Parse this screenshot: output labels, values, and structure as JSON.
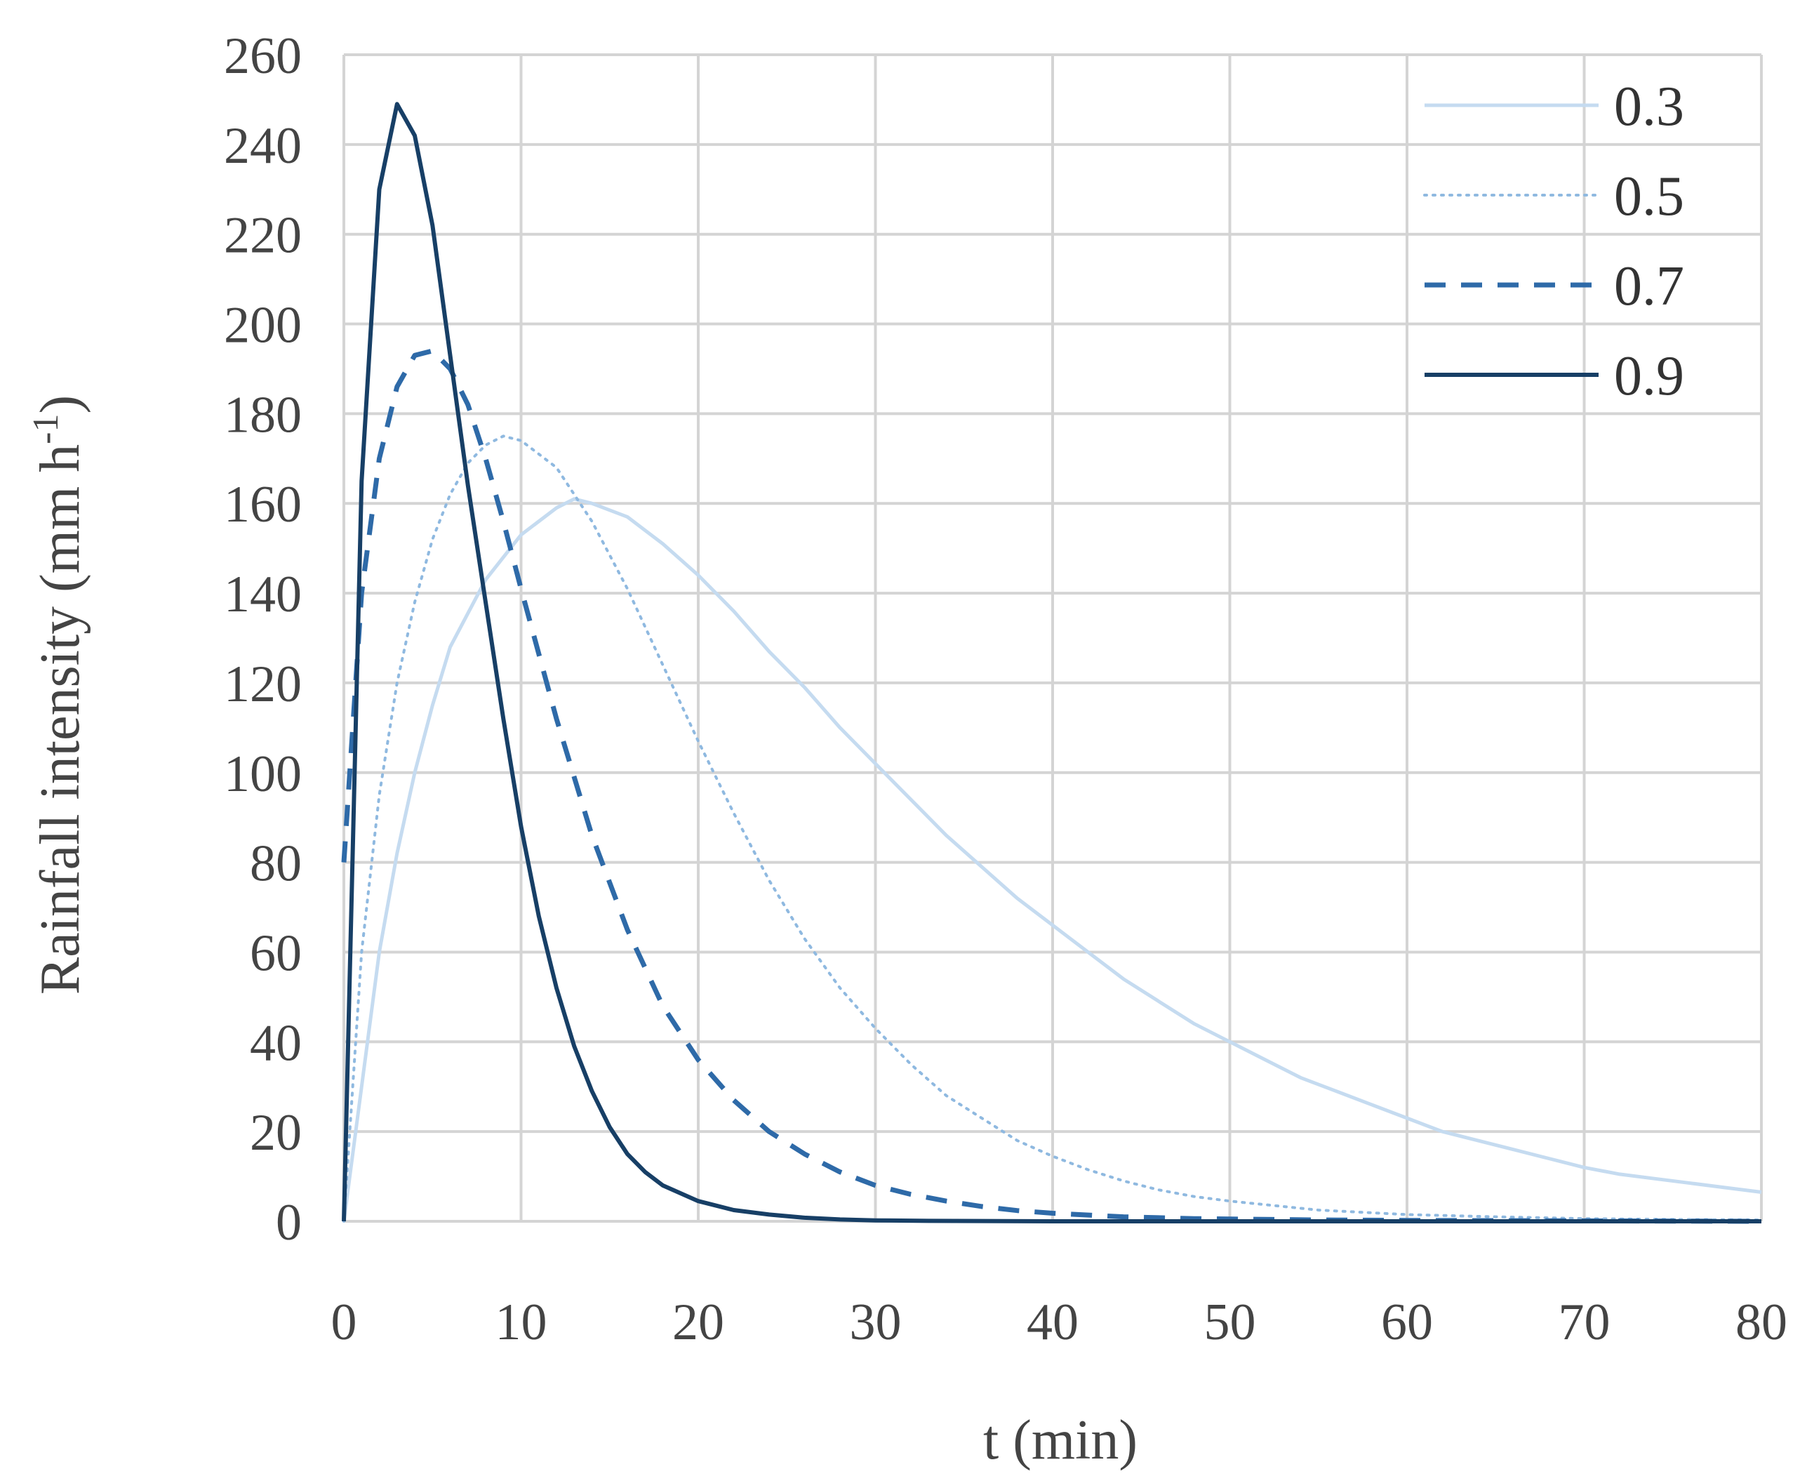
{
  "chart_data": {
    "type": "line",
    "title": "",
    "xlabel": "t (min)",
    "ylabel": "Rainfall intensity (mm h",
    "ylabel_sup": "-1",
    "ylabel_close": ")",
    "xlim": [
      0,
      80
    ],
    "ylim": [
      0,
      260
    ],
    "x_ticks": [
      0,
      10,
      20,
      30,
      40,
      50,
      60,
      70,
      80
    ],
    "y_ticks": [
      0,
      20,
      40,
      60,
      80,
      100,
      120,
      140,
      160,
      180,
      200,
      220,
      240,
      260
    ],
    "grid": true,
    "legend_position": "top-right",
    "series": [
      {
        "name": "0.3",
        "color": "#c5dbf0",
        "style": "solid",
        "points": [
          [
            0,
            0
          ],
          [
            1,
            30
          ],
          [
            2,
            60
          ],
          [
            3,
            82
          ],
          [
            4,
            100
          ],
          [
            5,
            115
          ],
          [
            6,
            128
          ],
          [
            8,
            143
          ],
          [
            10,
            153
          ],
          [
            12,
            159
          ],
          [
            13,
            161
          ],
          [
            14,
            160
          ],
          [
            16,
            157
          ],
          [
            18,
            151
          ],
          [
            20,
            144
          ],
          [
            22,
            136
          ],
          [
            24,
            127
          ],
          [
            26,
            119
          ],
          [
            28,
            110
          ],
          [
            30,
            102
          ],
          [
            32,
            94
          ],
          [
            34,
            86
          ],
          [
            36,
            79
          ],
          [
            38,
            72
          ],
          [
            40,
            66
          ],
          [
            42,
            60
          ],
          [
            44,
            54
          ],
          [
            46,
            49
          ],
          [
            48,
            44
          ],
          [
            50,
            40
          ],
          [
            52,
            36
          ],
          [
            54,
            32
          ],
          [
            56,
            29
          ],
          [
            58,
            26
          ],
          [
            60,
            23
          ],
          [
            62,
            20
          ],
          [
            64,
            18
          ],
          [
            66,
            16
          ],
          [
            68,
            14
          ],
          [
            70,
            12
          ],
          [
            72,
            10.5
          ],
          [
            74,
            9.5
          ],
          [
            76,
            8.5
          ],
          [
            78,
            7.5
          ],
          [
            80,
            6.5
          ]
        ]
      },
      {
        "name": "0.5",
        "color": "#8fb9e0",
        "style": "dotted",
        "points": [
          [
            0,
            0
          ],
          [
            1,
            60
          ],
          [
            2,
            95
          ],
          [
            3,
            120
          ],
          [
            4,
            138
          ],
          [
            5,
            152
          ],
          [
            6,
            162
          ],
          [
            7,
            169
          ],
          [
            8,
            173
          ],
          [
            9,
            175
          ],
          [
            10,
            174
          ],
          [
            12,
            168
          ],
          [
            14,
            156
          ],
          [
            16,
            141
          ],
          [
            18,
            124
          ],
          [
            20,
            107
          ],
          [
            22,
            91
          ],
          [
            24,
            76
          ],
          [
            26,
            63
          ],
          [
            28,
            52
          ],
          [
            30,
            43
          ],
          [
            32,
            35
          ],
          [
            34,
            28
          ],
          [
            36,
            23
          ],
          [
            38,
            18
          ],
          [
            40,
            14.5
          ],
          [
            42,
            11.5
          ],
          [
            44,
            9
          ],
          [
            46,
            7
          ],
          [
            48,
            5.5
          ],
          [
            50,
            4.5
          ],
          [
            55,
            2.5
          ],
          [
            60,
            1.5
          ],
          [
            65,
            1
          ],
          [
            70,
            0.6
          ],
          [
            75,
            0.4
          ],
          [
            80,
            0.3
          ]
        ]
      },
      {
        "name": "0.7",
        "color": "#2e6aa8",
        "style": "dashed",
        "points": [
          [
            0,
            80
          ],
          [
            1,
            140
          ],
          [
            2,
            170
          ],
          [
            3,
            186
          ],
          [
            4,
            193
          ],
          [
            5,
            194
          ],
          [
            6,
            190
          ],
          [
            7,
            182
          ],
          [
            8,
            170
          ],
          [
            9,
            156
          ],
          [
            10,
            141
          ],
          [
            12,
            112
          ],
          [
            14,
            86
          ],
          [
            16,
            65
          ],
          [
            18,
            48
          ],
          [
            20,
            36
          ],
          [
            22,
            27
          ],
          [
            24,
            20
          ],
          [
            26,
            15
          ],
          [
            28,
            11
          ],
          [
            30,
            8
          ],
          [
            32,
            6
          ],
          [
            34,
            4.5
          ],
          [
            36,
            3.3
          ],
          [
            38,
            2.4
          ],
          [
            40,
            1.8
          ],
          [
            44,
            1
          ],
          [
            48,
            0.6
          ],
          [
            55,
            0.3
          ],
          [
            60,
            0.2
          ],
          [
            70,
            0.1
          ],
          [
            80,
            0
          ]
        ]
      },
      {
        "name": "0.9",
        "color": "#173f66",
        "style": "solid",
        "points": [
          [
            0,
            0
          ],
          [
            1,
            165
          ],
          [
            2,
            230
          ],
          [
            3,
            249
          ],
          [
            4,
            242
          ],
          [
            5,
            222
          ],
          [
            6,
            193
          ],
          [
            7,
            164
          ],
          [
            8,
            138
          ],
          [
            9,
            112
          ],
          [
            10,
            88
          ],
          [
            11,
            68
          ],
          [
            12,
            52
          ],
          [
            13,
            39
          ],
          [
            14,
            29
          ],
          [
            15,
            21
          ],
          [
            16,
            15
          ],
          [
            17,
            11
          ],
          [
            18,
            8
          ],
          [
            20,
            4.5
          ],
          [
            22,
            2.5
          ],
          [
            24,
            1.5
          ],
          [
            26,
            0.8
          ],
          [
            28,
            0.4
          ],
          [
            30,
            0.2
          ],
          [
            33,
            0.1
          ],
          [
            40,
            0
          ],
          [
            80,
            0
          ]
        ]
      }
    ]
  }
}
